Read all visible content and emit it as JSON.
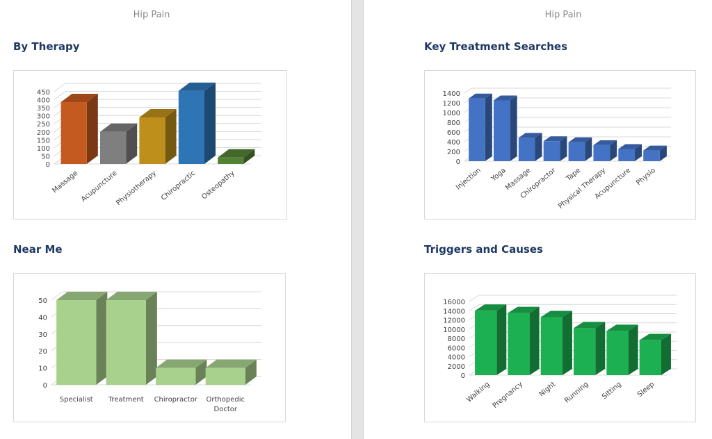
{
  "pages": [
    {
      "header": "Hip Pain",
      "sections": [
        "By Therapy",
        "Near Me"
      ]
    },
    {
      "header": "Hip Pain",
      "sections": [
        "Key Treatment Searches",
        "Triggers and Causes"
      ]
    }
  ],
  "chart_data": [
    {
      "type": "bar",
      "title": "By Therapy",
      "categories": [
        "Massage",
        "Acupuncture",
        "Physiotherapy",
        "Chiropractic",
        "Osteopathy"
      ],
      "values": [
        385,
        200,
        290,
        455,
        40
      ],
      "colors": [
        "#c55a20",
        "#7f7f7f",
        "#bf8f1c",
        "#2e75b6",
        "#548235"
      ],
      "ylim": [
        0,
        450
      ],
      "yticks": [
        0,
        50,
        100,
        150,
        200,
        250,
        300,
        350,
        400,
        450
      ],
      "grid": true
    },
    {
      "type": "bar",
      "title": "Near Me",
      "categories": [
        "Specialist",
        "Treatment",
        "Chiropractor",
        "Orthopedic Doctor"
      ],
      "values": [
        50,
        50,
        10,
        10
      ],
      "colors": [
        "#a9d18e"
      ],
      "ylim": [
        0,
        50
      ],
      "yticks": [
        0,
        10,
        20,
        30,
        40,
        50
      ],
      "grid": true
    },
    {
      "type": "bar",
      "title": "Key Treatment Searches",
      "categories": [
        "Injection",
        "Yoga",
        "Massage",
        "Chiropractor",
        "Tape",
        "Physical Therapy",
        "Acupuncture",
        "Physio"
      ],
      "values": [
        1290,
        1250,
        480,
        410,
        390,
        330,
        250,
        220
      ],
      "colors": [
        "#4472c4"
      ],
      "ylim": [
        0,
        1400
      ],
      "yticks": [
        0,
        200,
        400,
        600,
        800,
        1000,
        1200,
        1400
      ],
      "grid": true
    },
    {
      "type": "bar",
      "title": "Triggers and Causes",
      "categories": [
        "Walking",
        "Pregnancy",
        "Night",
        "Running",
        "Sitting",
        "Sleep"
      ],
      "values": [
        14000,
        13500,
        12600,
        10200,
        9600,
        7600
      ],
      "colors": [
        "#1db052"
      ],
      "ylim": [
        0,
        16000
      ],
      "yticks": [
        0,
        2000,
        4000,
        6000,
        8000,
        10000,
        12000,
        14000,
        16000
      ],
      "grid": true
    }
  ]
}
